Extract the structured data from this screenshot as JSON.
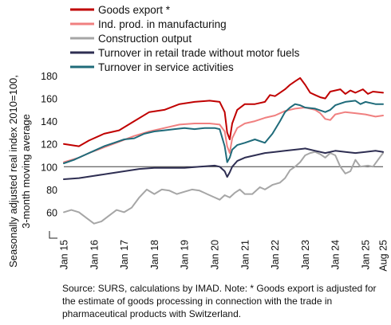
{
  "chart_data": {
    "type": "line",
    "ylabel_line1": "Seasonally adjusted real index 2010=100,",
    "ylabel_line2": "3-month moving average",
    "ylim": [
      40,
      180
    ],
    "yticks": [
      60,
      80,
      100,
      120,
      140,
      160,
      180
    ],
    "reference_line": 100,
    "xticks": [
      "Jan 15",
      "Jan 16",
      "Jan 17",
      "Jan 18",
      "Jan 19",
      "Jan 20",
      "Jan 21",
      "Jan 22",
      "Jan 23",
      "Jan 24",
      "Jan 25",
      "Aug 25"
    ],
    "legend_position": "top",
    "grid": false,
    "series": [
      {
        "name": "Goods export *",
        "color": "#c00000",
        "points": [
          [
            0,
            120
          ],
          [
            6,
            118
          ],
          [
            10,
            123
          ],
          [
            16,
            129
          ],
          [
            22,
            132
          ],
          [
            28,
            140
          ],
          [
            34,
            148
          ],
          [
            40,
            150
          ],
          [
            46,
            155
          ],
          [
            52,
            157
          ],
          [
            58,
            158
          ],
          [
            62,
            157
          ],
          [
            64,
            148
          ],
          [
            65,
            130
          ],
          [
            66,
            124
          ],
          [
            67,
            138
          ],
          [
            69,
            150
          ],
          [
            72,
            155
          ],
          [
            76,
            155
          ],
          [
            80,
            157
          ],
          [
            82,
            163
          ],
          [
            84,
            162
          ],
          [
            86,
            165
          ],
          [
            88,
            168
          ],
          [
            90,
            172
          ],
          [
            92,
            175
          ],
          [
            94,
            178
          ],
          [
            96,
            172
          ],
          [
            98,
            165
          ],
          [
            100,
            163
          ],
          [
            102,
            161
          ],
          [
            104,
            160
          ],
          [
            106,
            166
          ],
          [
            110,
            168
          ],
          [
            112,
            164
          ],
          [
            114,
            167
          ],
          [
            116,
            165
          ],
          [
            119,
            168
          ],
          [
            121,
            164
          ],
          [
            123,
            166
          ],
          [
            127,
            165
          ]
        ]
      },
      {
        "name": "Ind. prod. in manufacturing",
        "color": "#f08080",
        "points": [
          [
            0,
            104
          ],
          [
            6,
            108
          ],
          [
            10,
            112
          ],
          [
            16,
            117
          ],
          [
            22,
            122
          ],
          [
            28,
            127
          ],
          [
            34,
            131
          ],
          [
            40,
            134
          ],
          [
            46,
            137
          ],
          [
            52,
            138
          ],
          [
            58,
            138
          ],
          [
            62,
            137
          ],
          [
            64,
            131
          ],
          [
            65,
            118
          ],
          [
            66,
            112
          ],
          [
            67,
            125
          ],
          [
            69,
            134
          ],
          [
            72,
            138
          ],
          [
            76,
            140
          ],
          [
            80,
            143
          ],
          [
            84,
            145
          ],
          [
            88,
            149
          ],
          [
            92,
            151
          ],
          [
            96,
            152
          ],
          [
            100,
            150
          ],
          [
            102,
            147
          ],
          [
            104,
            142
          ],
          [
            106,
            141
          ],
          [
            108,
            146
          ],
          [
            112,
            148
          ],
          [
            116,
            147
          ],
          [
            120,
            146
          ],
          [
            124,
            144
          ],
          [
            127,
            145
          ]
        ]
      },
      {
        "name": "Construction output",
        "color": "#a6a6a6",
        "points": [
          [
            0,
            60
          ],
          [
            3,
            62
          ],
          [
            6,
            60
          ],
          [
            9,
            55
          ],
          [
            12,
            50
          ],
          [
            15,
            52
          ],
          [
            18,
            57
          ],
          [
            21,
            62
          ],
          [
            24,
            60
          ],
          [
            27,
            64
          ],
          [
            30,
            73
          ],
          [
            33,
            80
          ],
          [
            36,
            76
          ],
          [
            39,
            80
          ],
          [
            42,
            79
          ],
          [
            45,
            76
          ],
          [
            48,
            78
          ],
          [
            51,
            80
          ],
          [
            54,
            79
          ],
          [
            57,
            76
          ],
          [
            60,
            73
          ],
          [
            62,
            71
          ],
          [
            64,
            75
          ],
          [
            66,
            73
          ],
          [
            68,
            77
          ],
          [
            70,
            80
          ],
          [
            72,
            76
          ],
          [
            75,
            76
          ],
          [
            78,
            82
          ],
          [
            80,
            80
          ],
          [
            83,
            84
          ],
          [
            86,
            86
          ],
          [
            88,
            90
          ],
          [
            90,
            97
          ],
          [
            92,
            100
          ],
          [
            94,
            104
          ],
          [
            96,
            110
          ],
          [
            98,
            112
          ],
          [
            100,
            113
          ],
          [
            102,
            111
          ],
          [
            104,
            108
          ],
          [
            106,
            112
          ],
          [
            108,
            110
          ],
          [
            110,
            100
          ],
          [
            112,
            94
          ],
          [
            114,
            96
          ],
          [
            116,
            106
          ],
          [
            118,
            100
          ],
          [
            121,
            101
          ],
          [
            123,
            100
          ],
          [
            125,
            106
          ],
          [
            127,
            112
          ]
        ]
      },
      {
        "name": "Turnover in retail trade without motor fuels",
        "color": "#2e2e52",
        "points": [
          [
            0,
            89
          ],
          [
            6,
            90
          ],
          [
            12,
            92
          ],
          [
            18,
            94
          ],
          [
            24,
            96
          ],
          [
            30,
            98
          ],
          [
            36,
            99
          ],
          [
            42,
            99
          ],
          [
            48,
            99
          ],
          [
            54,
            100
          ],
          [
            60,
            101
          ],
          [
            62,
            100
          ],
          [
            64,
            96
          ],
          [
            65,
            91
          ],
          [
            66,
            95
          ],
          [
            67,
            100
          ],
          [
            69,
            105
          ],
          [
            72,
            108
          ],
          [
            76,
            110
          ],
          [
            80,
            112
          ],
          [
            84,
            113
          ],
          [
            88,
            114
          ],
          [
            92,
            115
          ],
          [
            96,
            116
          ],
          [
            100,
            114
          ],
          [
            104,
            112
          ],
          [
            108,
            114
          ],
          [
            112,
            113
          ],
          [
            116,
            112
          ],
          [
            120,
            113
          ],
          [
            124,
            114
          ],
          [
            127,
            113
          ]
        ]
      },
      {
        "name": "Turnover in service activities",
        "color": "#1f6b7a",
        "points": [
          [
            0,
            103
          ],
          [
            4,
            106
          ],
          [
            8,
            110
          ],
          [
            12,
            114
          ],
          [
            16,
            118
          ],
          [
            20,
            121
          ],
          [
            24,
            124
          ],
          [
            28,
            125
          ],
          [
            32,
            129
          ],
          [
            36,
            131
          ],
          [
            40,
            132
          ],
          [
            44,
            133
          ],
          [
            48,
            134
          ],
          [
            52,
            133
          ],
          [
            56,
            134
          ],
          [
            60,
            134
          ],
          [
            62,
            133
          ],
          [
            64,
            118
          ],
          [
            65,
            104
          ],
          [
            66,
            108
          ],
          [
            67,
            115
          ],
          [
            69,
            119
          ],
          [
            72,
            121
          ],
          [
            76,
            124
          ],
          [
            80,
            121
          ],
          [
            83,
            129
          ],
          [
            86,
            140
          ],
          [
            88,
            148
          ],
          [
            90,
            152
          ],
          [
            92,
            155
          ],
          [
            94,
            154
          ],
          [
            96,
            152
          ],
          [
            100,
            151
          ],
          [
            104,
            148
          ],
          [
            106,
            150
          ],
          [
            108,
            154
          ],
          [
            112,
            157
          ],
          [
            116,
            158
          ],
          [
            118,
            155
          ],
          [
            120,
            157
          ],
          [
            124,
            155
          ],
          [
            127,
            155
          ]
        ]
      }
    ]
  },
  "source_note": "Source: SURS, calculations by IMAD. Note: * Goods export is adjusted for the estimate of goods processing in connection with the trade in pharmaceutical products with Switzerland."
}
